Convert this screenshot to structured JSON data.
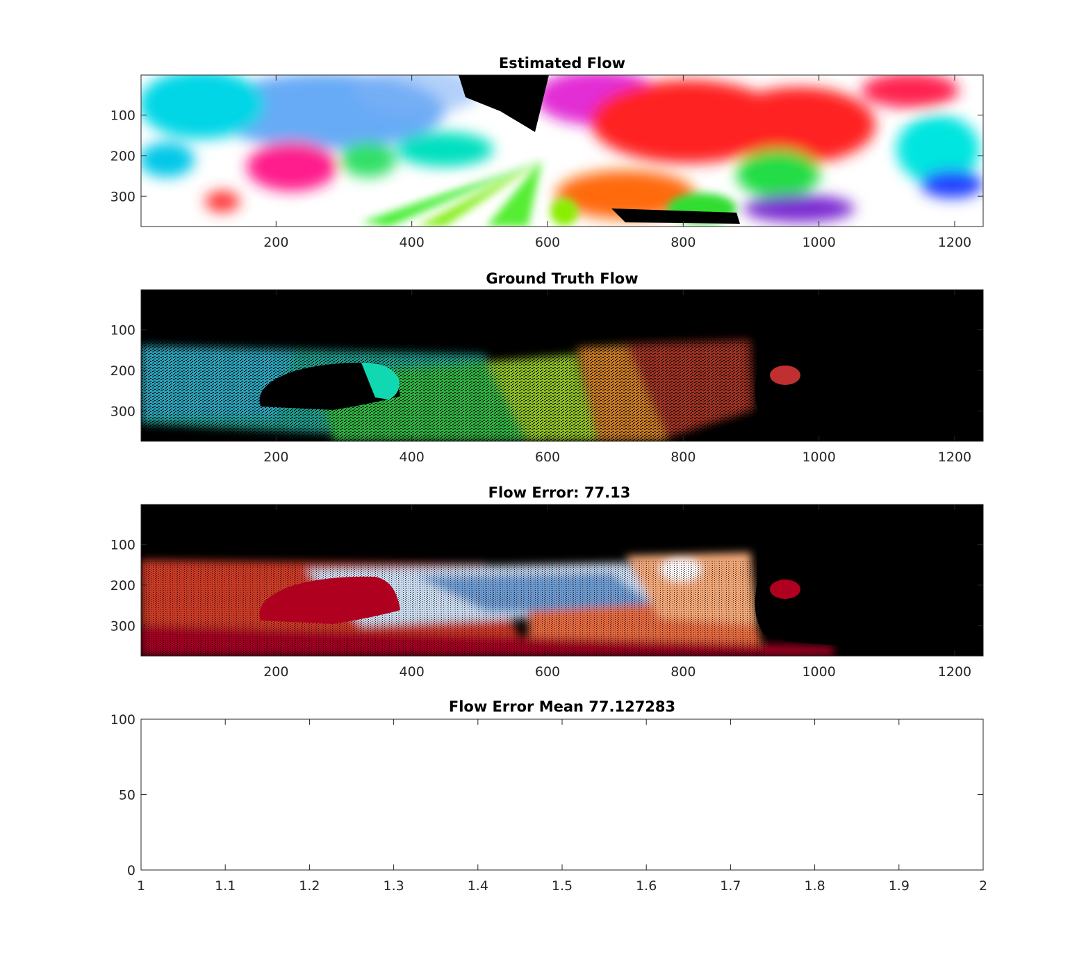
{
  "chart_data": [
    {
      "type": "heatmap",
      "title": "Estimated Flow",
      "description_colors": [
        "#ffffff",
        "#2f86f0",
        "#00e5e0",
        "#ff1a8c",
        "#ff2020",
        "#ff7a10",
        "#33dd33",
        "#000000"
      ],
      "xlim": [
        1,
        1242
      ],
      "ylim": [
        1,
        375
      ],
      "y_reversed": true,
      "xticks": [
        200,
        400,
        600,
        800,
        1000,
        1200
      ],
      "yticks": [
        100,
        200,
        300
      ],
      "xtick_labels": [
        "200",
        "400",
        "600",
        "800",
        "1000",
        "1200"
      ],
      "ytick_labels": [
        "100",
        "200",
        "300"
      ]
    },
    {
      "type": "heatmap",
      "title": "Ground Truth Flow",
      "xlim": [
        1,
        1242
      ],
      "ylim": [
        1,
        375
      ],
      "y_reversed": true,
      "xticks": [
        200,
        400,
        600,
        800,
        1000,
        1200
      ],
      "yticks": [
        100,
        200,
        300
      ],
      "xtick_labels": [
        "200",
        "400",
        "600",
        "800",
        "1000",
        "1200"
      ],
      "ytick_labels": [
        "100",
        "200",
        "300"
      ]
    },
    {
      "type": "heatmap",
      "title": "Flow Error: 77.13",
      "xlim": [
        1,
        1242
      ],
      "ylim": [
        1,
        375
      ],
      "y_reversed": true,
      "xticks": [
        200,
        400,
        600,
        800,
        1000,
        1200
      ],
      "yticks": [
        100,
        200,
        300
      ],
      "xtick_labels": [
        "200",
        "400",
        "600",
        "800",
        "1000",
        "1200"
      ],
      "ytick_labels": [
        "100",
        "200",
        "300"
      ]
    },
    {
      "type": "line",
      "title": "Flow Error Mean 77.127283",
      "x": [],
      "y": [],
      "xlim": [
        1,
        2
      ],
      "ylim": [
        0,
        100
      ],
      "xticks": [
        1,
        1.1,
        1.2,
        1.3,
        1.4,
        1.5,
        1.6,
        1.7,
        1.8,
        1.9,
        2
      ],
      "yticks": [
        0,
        50,
        100
      ],
      "xtick_labels": [
        "1",
        "1.1",
        "1.2",
        "1.3",
        "1.4",
        "1.5",
        "1.6",
        "1.7",
        "1.8",
        "1.9",
        "2"
      ],
      "ytick_labels": [
        "0",
        "50",
        "100"
      ]
    }
  ]
}
